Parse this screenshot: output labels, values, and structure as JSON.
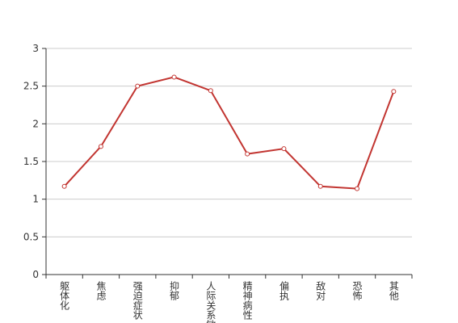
{
  "chart_data": {
    "type": "line",
    "categories": [
      "躯体化",
      "焦虑",
      "强迫症状",
      "抑郁",
      "人际关系敏感",
      "精神病性",
      "偏执",
      "敌对",
      "恐怖",
      "其他"
    ],
    "values": [
      1.17,
      1.7,
      2.5,
      2.62,
      2.44,
      1.6,
      1.67,
      1.17,
      1.14,
      2.43
    ],
    "color": "#c23531",
    "ylim": [
      0,
      3
    ],
    "yticks": [
      0,
      0.5,
      1,
      1.5,
      2,
      2.5,
      3
    ],
    "grid": true
  }
}
